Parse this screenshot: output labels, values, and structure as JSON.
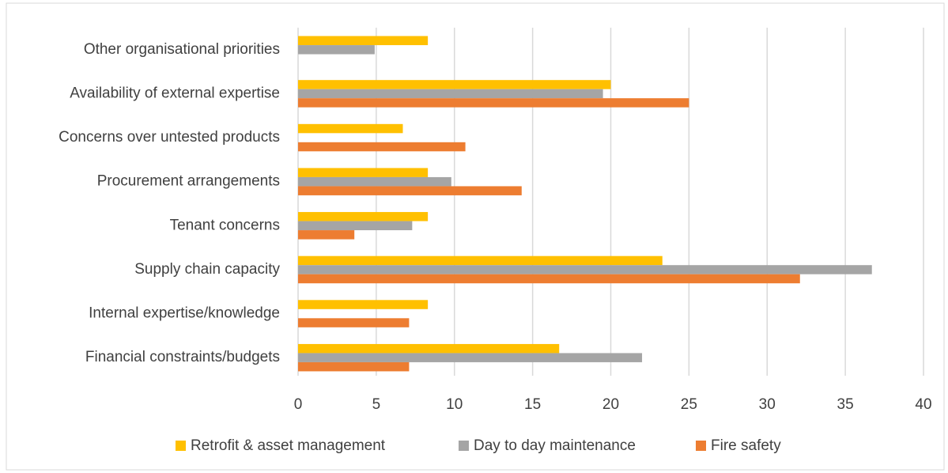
{
  "chart_data": {
    "type": "hbar",
    "categories": [
      "Other organisational priorities",
      "Availability of external expertise",
      "Concerns over untested products",
      "Procurement arrangements",
      "Tenant concerns",
      "Supply chain capacity",
      "Internal expertise/knowledge",
      "Financial constraints/budgets"
    ],
    "series": [
      {
        "name": "Retrofit & asset management",
        "color": "#ffc000",
        "values": [
          8.3,
          20.0,
          6.7,
          8.3,
          8.3,
          23.3,
          8.3,
          16.7
        ]
      },
      {
        "name": "Day to day maintenance",
        "color": "#a5a5a5",
        "values": [
          4.9,
          19.5,
          null,
          9.8,
          7.3,
          36.7,
          null,
          22.0
        ]
      },
      {
        "name": "Fire safety",
        "color": "#ed7d31",
        "values": [
          null,
          25.0,
          10.7,
          14.3,
          3.6,
          32.1,
          7.1,
          7.1
        ]
      }
    ],
    "xlim": [
      0,
      40
    ],
    "xticks": [
      0,
      5,
      10,
      15,
      20,
      25,
      30,
      35,
      40
    ],
    "grid": true,
    "legend": "bottom"
  }
}
